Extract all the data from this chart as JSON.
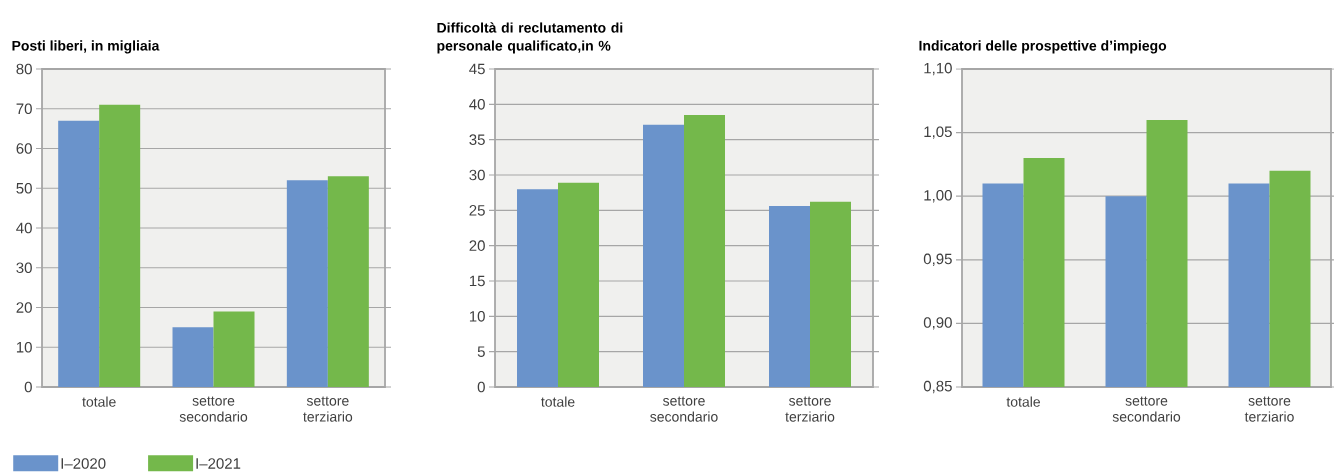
{
  "chart_data": [
    {
      "type": "bar",
      "title": "Posti liberi, in migliaia",
      "categories": [
        "totale",
        "settore secondario",
        "settore terziario"
      ],
      "series": [
        {
          "name": "I–2020",
          "color": "#6a93cb",
          "values": [
            67,
            15,
            52
          ]
        },
        {
          "name": "I–2021",
          "color": "#74b84b",
          "values": [
            71,
            19,
            53
          ]
        }
      ],
      "ylim": [
        0,
        80
      ],
      "yticks": [
        0,
        10,
        20,
        30,
        40,
        50,
        60,
        70,
        80
      ],
      "grid": "y",
      "legend": "bottom"
    },
    {
      "type": "bar",
      "title": "Difficoltà di reclutamento di personale qualificato,in %",
      "categories": [
        "totale",
        "settore secondario",
        "settore terziario"
      ],
      "series": [
        {
          "color": "#6a93cb",
          "values": [
            28,
            37.1,
            25.6
          ]
        },
        {
          "color": "#74b84b",
          "values": [
            28.9,
            38.5,
            26.2
          ]
        }
      ],
      "ylim": [
        0,
        45
      ],
      "yticks": [
        0,
        5,
        10,
        15,
        20,
        25,
        30,
        35,
        40,
        45
      ],
      "grid": "y"
    },
    {
      "type": "bar",
      "title": "Indicatori delle prospettive d’impiego",
      "categories": [
        "totale",
        "settore secondario",
        "settore terziario"
      ],
      "series": [
        {
          "color": "#6a93cb",
          "values": [
            1.01,
            1.0,
            1.01
          ]
        },
        {
          "color": "#74b84b",
          "values": [
            1.03,
            1.06,
            1.02
          ]
        }
      ],
      "ylim": [
        0.85,
        1.1
      ],
      "yticks": [
        {
          "value": 0.85,
          "label": "0,85"
        },
        {
          "value": 0.9,
          "label": "0,90"
        },
        {
          "value": 0.95,
          "label": "0,95"
        },
        {
          "value": 1.0,
          "label": "1,00"
        },
        {
          "value": 1.05,
          "label": "1,05"
        },
        {
          "value": 1.1,
          "label": "1,10"
        }
      ],
      "grid": "y"
    }
  ]
}
